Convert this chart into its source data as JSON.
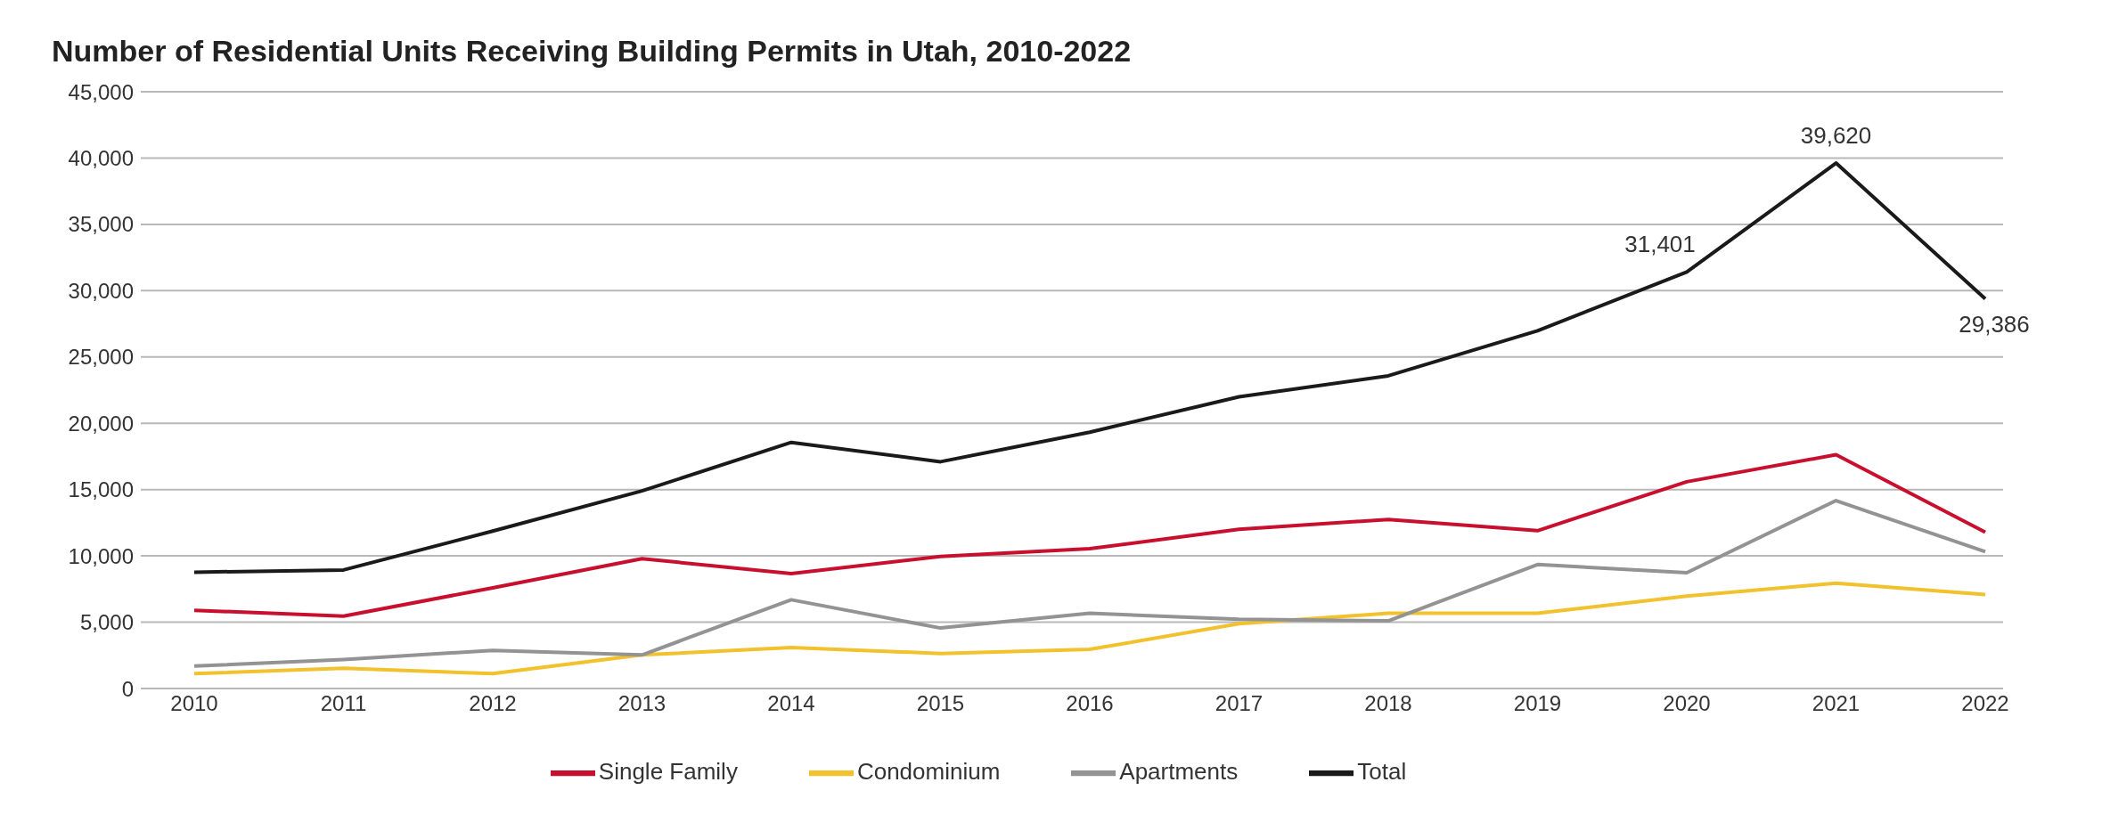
{
  "chart_data": {
    "type": "line",
    "title": "Number of Residential Units Receiving Building Permits in Utah, 2010-2022",
    "categories": [
      "2010",
      "2011",
      "2012",
      "2013",
      "2014",
      "2015",
      "2016",
      "2017",
      "2018",
      "2019",
      "2020",
      "2021",
      "2022"
    ],
    "series": [
      {
        "name": "Single Family",
        "color": "#c8102e",
        "values": [
          5900,
          5460,
          7590,
          9790,
          8660,
          9960,
          10540,
          12010,
          12750,
          11900,
          15590,
          17630,
          11790
        ]
      },
      {
        "name": "Condominium",
        "color": "#f2c12e",
        "values": [
          1120,
          1520,
          1120,
          2530,
          3090,
          2640,
          2950,
          4880,
          5670,
          5670,
          6970,
          7940,
          7090
        ]
      },
      {
        "name": "Apartments",
        "color": "#939393",
        "values": [
          1690,
          2190,
          2870,
          2530,
          6690,
          4560,
          5670,
          5220,
          5100,
          9350,
          8730,
          14170,
          10320
        ]
      },
      {
        "name": "Total",
        "color": "#1a1a1a",
        "values": [
          8770,
          8940,
          11870,
          14900,
          18560,
          17100,
          19330,
          22000,
          23580,
          26980,
          31401,
          39620,
          29386
        ],
        "value_labels": [
          null,
          null,
          null,
          null,
          null,
          null,
          null,
          null,
          null,
          null,
          "31,401",
          "39,620",
          "29,386"
        ]
      }
    ],
    "ylim": [
      0,
      45000
    ],
    "yticks": [
      {
        "value": 0,
        "label": "0"
      },
      {
        "value": 5000,
        "label": "5,000"
      },
      {
        "value": 10000,
        "label": "10,000"
      },
      {
        "value": 15000,
        "label": "15,000"
      },
      {
        "value": 20000,
        "label": "20,000"
      },
      {
        "value": 25000,
        "label": "25,000"
      },
      {
        "value": 30000,
        "label": "30,000"
      },
      {
        "value": 35000,
        "label": "35,000"
      },
      {
        "value": 40000,
        "label": "40,000"
      },
      {
        "value": 45000,
        "label": "45,000"
      }
    ],
    "grid": "y",
    "legend": "bottom",
    "marker": "none",
    "line_style": "solid"
  }
}
